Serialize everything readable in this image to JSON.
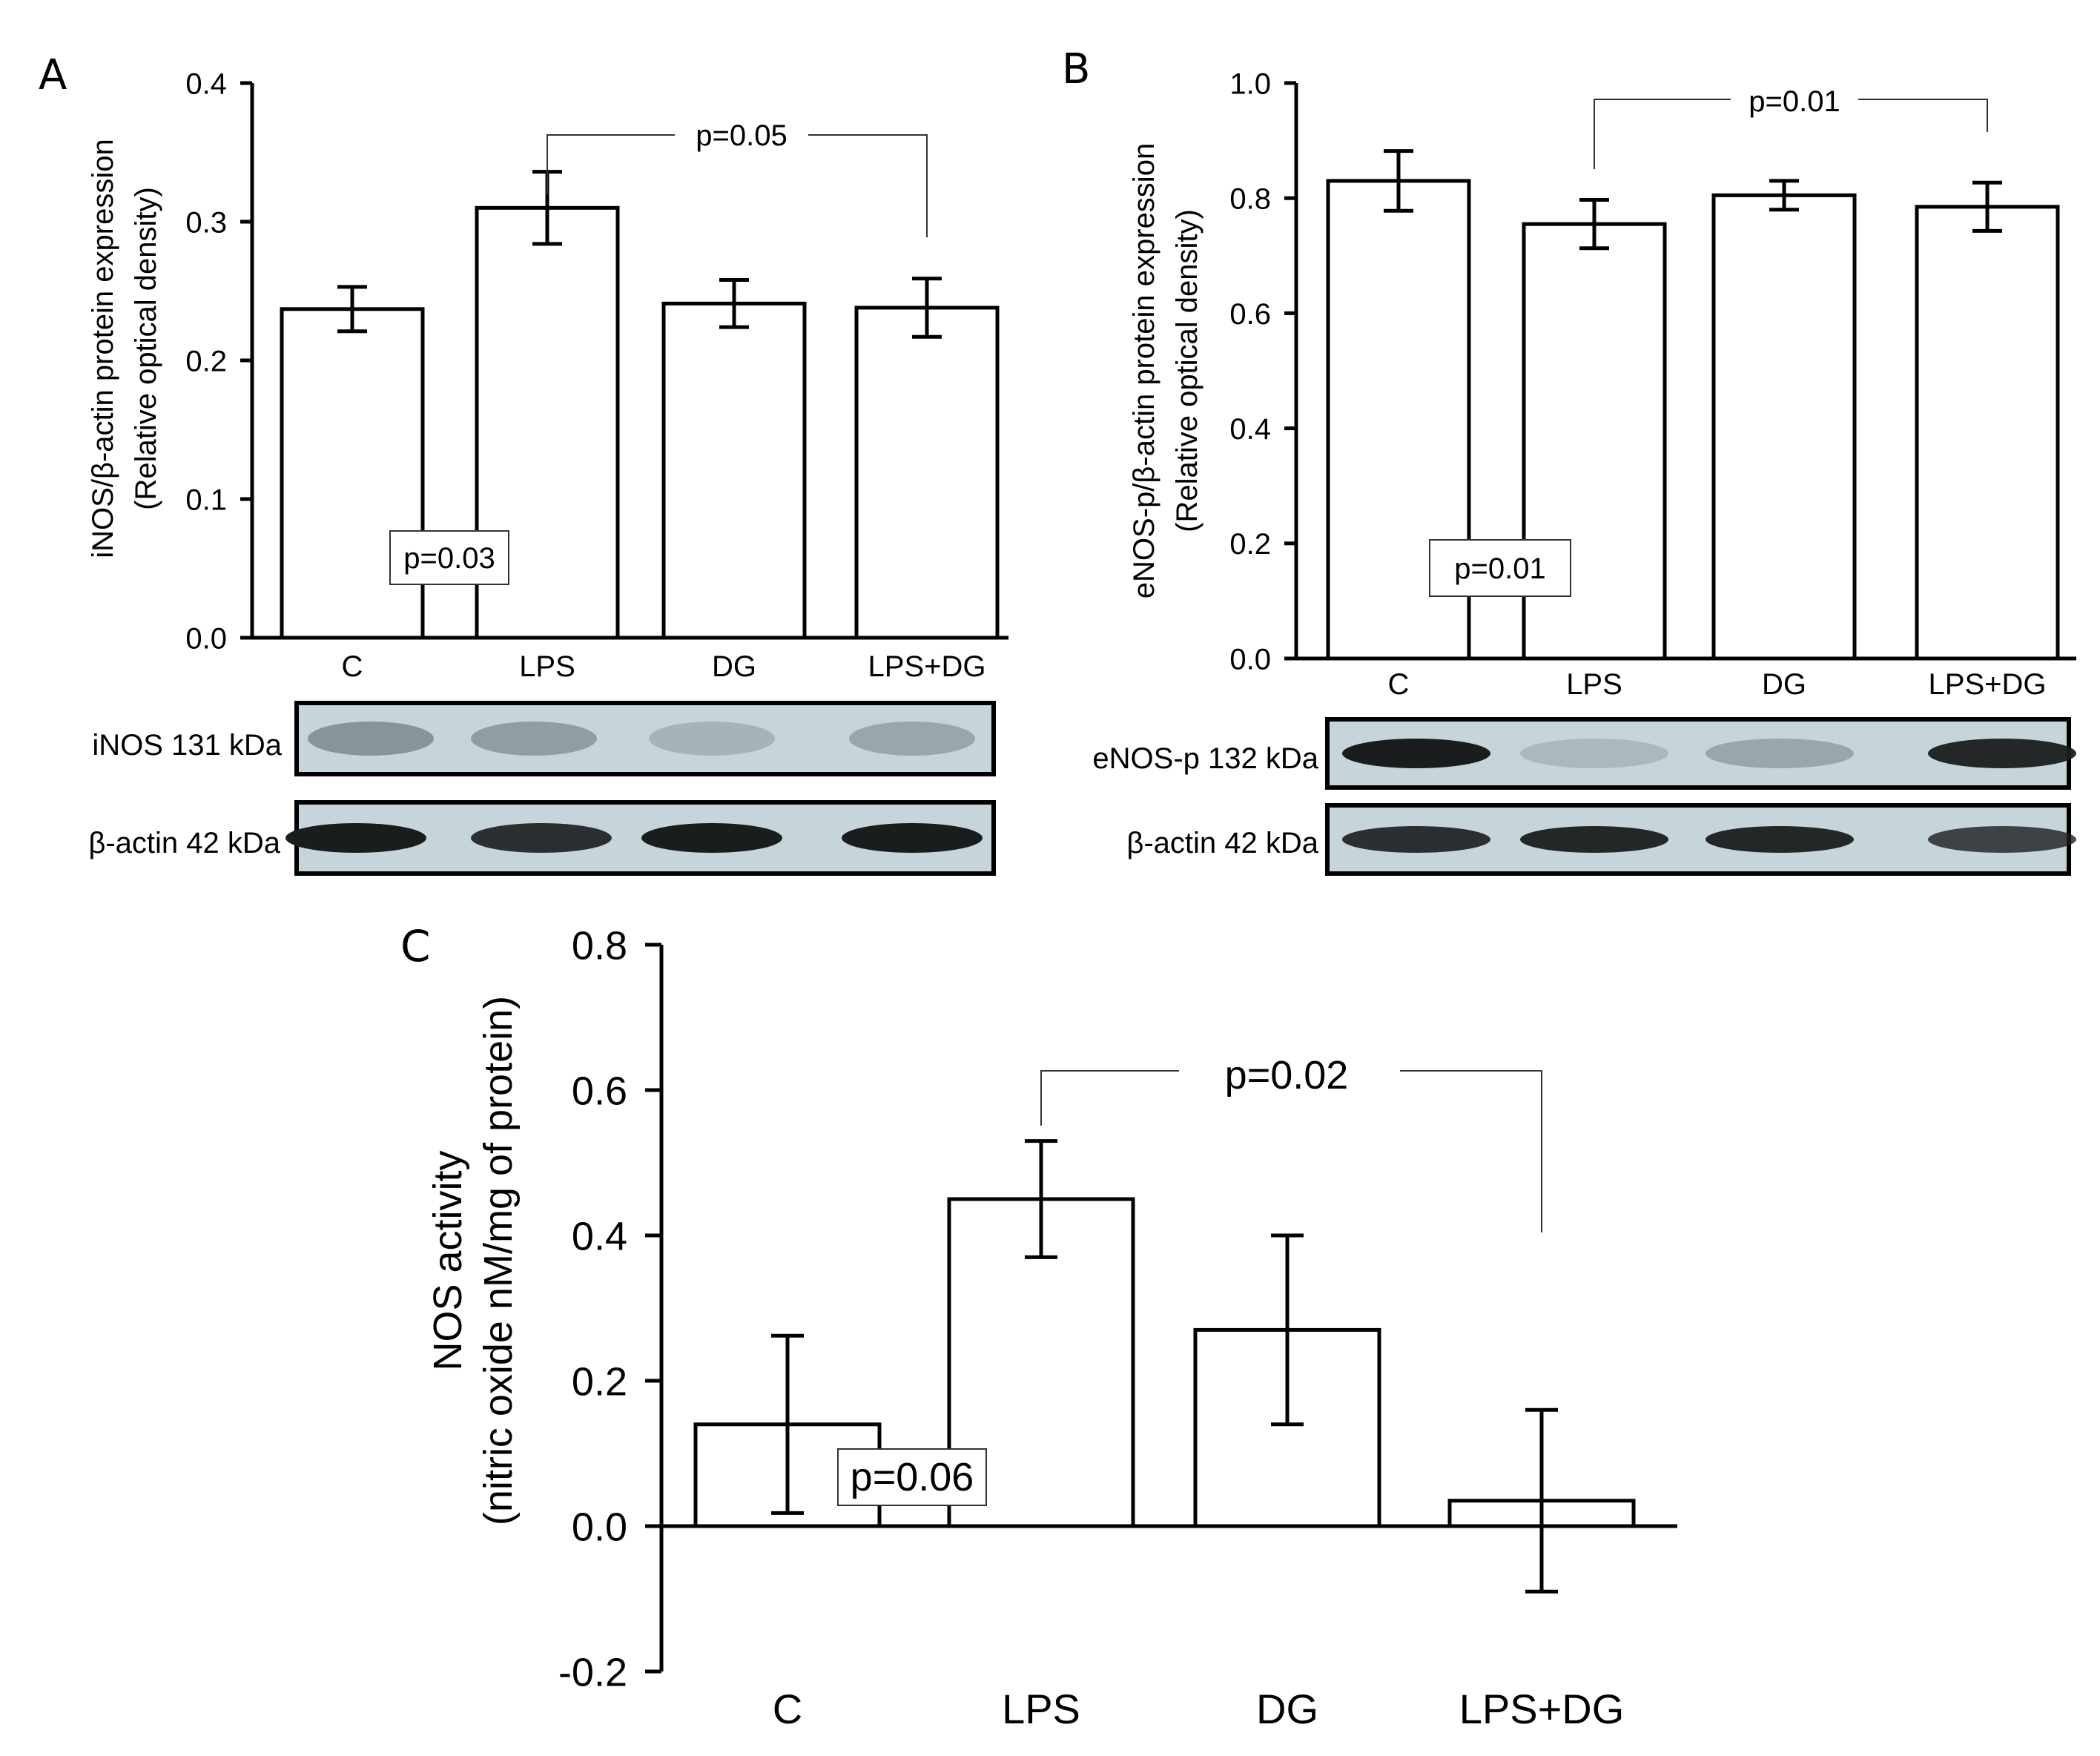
{
  "colors": {
    "axis": "#000000",
    "bar_fill": "#ffffff",
    "blot_bg": "#c5d5da",
    "band_dark": "#1a1d1e"
  },
  "chart_data": [
    {
      "panel": "A",
      "type": "bar",
      "categories": [
        "C",
        "LPS",
        "DG",
        "LPS+DG"
      ],
      "values": [
        0.237,
        0.31,
        0.241,
        0.238
      ],
      "errors": [
        0.016,
        0.026,
        0.017,
        0.021
      ],
      "ylabel_line1": "iNOS/β-actin protein expression",
      "ylabel_line2": "(Relative optical density)",
      "ylim": [
        0,
        0.4
      ],
      "yticks": [
        "0.0",
        "0.1",
        "0.2",
        "0.3",
        "0.4"
      ],
      "bracket_label": "p=0.05",
      "box_label": "p=0.03",
      "blots": [
        {
          "label": "iNOS 131 kDa",
          "intensity": [
            0.35,
            0.3,
            0.18,
            0.25
          ]
        },
        {
          "label": "β-actin 42 kDa",
          "intensity": [
            1.0,
            0.9,
            1.0,
            1.0
          ]
        }
      ]
    },
    {
      "panel": "B",
      "type": "bar",
      "categories": [
        "C",
        "LPS",
        "DG",
        "LPS+DG"
      ],
      "values": [
        0.83,
        0.755,
        0.805,
        0.785
      ],
      "errors": [
        0.052,
        0.042,
        0.025,
        0.042
      ],
      "ylabel_line1": "eNOS-p/β-actin protein expression",
      "ylabel_line2": "(Relative optical density)",
      "ylim": [
        0,
        1.0
      ],
      "yticks": [
        "0.0",
        "0.2",
        "0.4",
        "0.6",
        "0.8",
        "1.0"
      ],
      "bracket_label": "p=0.01",
      "box_label": "p=0.01",
      "blots": [
        {
          "label": "eNOS-p 132 kDa",
          "intensity": [
            1.0,
            0.15,
            0.25,
            0.95
          ]
        },
        {
          "label": "β-actin 42 kDa",
          "intensity": [
            0.9,
            0.95,
            0.95,
            0.8
          ]
        }
      ]
    },
    {
      "panel": "C",
      "type": "bar",
      "categories": [
        "C",
        "LPS",
        "DG",
        "LPS+DG"
      ],
      "values": [
        0.14,
        0.45,
        0.27,
        0.035
      ],
      "errors": [
        0.122,
        0.08,
        0.13,
        0.125
      ],
      "ylabel_line1": "NOS activity",
      "ylabel_line2": "(nitric oxide nM/mg of protein)",
      "ylim": [
        -0.2,
        0.8
      ],
      "yticks": [
        "-0.2",
        "0.0",
        "0.2",
        "0.4",
        "0.6",
        "0.8"
      ],
      "bracket_label": "p=0.02",
      "box_label": "p=0.06"
    }
  ]
}
